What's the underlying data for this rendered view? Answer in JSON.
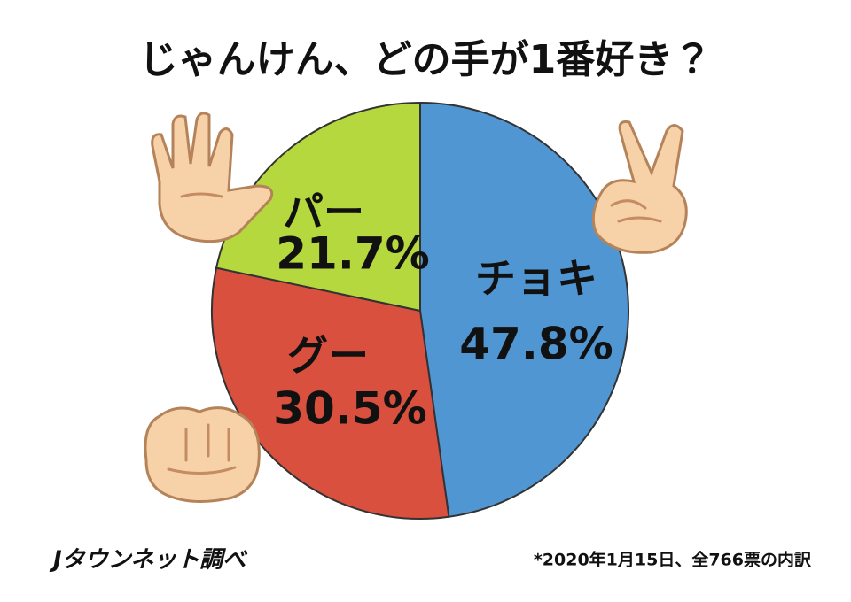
{
  "chart_data": {
    "type": "pie",
    "title": "じゃんけん、どの手が1番好き？",
    "categories": [
      "チョキ",
      "グー",
      "パー"
    ],
    "values": [
      47.8,
      30.5,
      21.7
    ],
    "value_labels": [
      "47.8%",
      "30.5%",
      "21.7%"
    ],
    "colors": [
      "#4f96d3",
      "#d9503f",
      "#b5d83e"
    ],
    "footnote": "*2020年1月15日、全766票の内訳",
    "source": "Jタウンネット調べ"
  }
}
